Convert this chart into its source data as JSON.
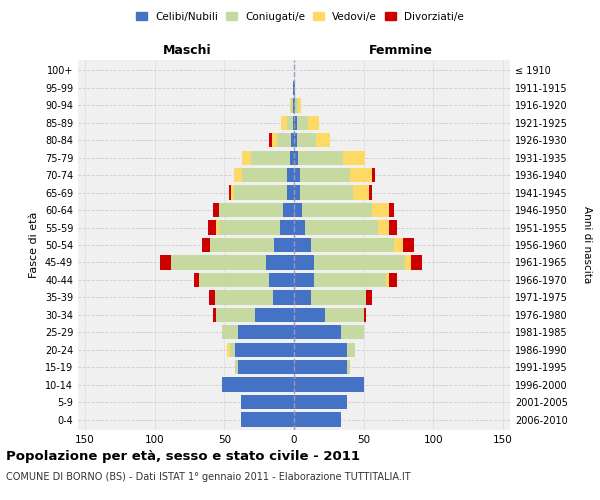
{
  "age_groups": [
    "0-4",
    "5-9",
    "10-14",
    "15-19",
    "20-24",
    "25-29",
    "30-34",
    "35-39",
    "40-44",
    "45-49",
    "50-54",
    "55-59",
    "60-64",
    "65-69",
    "70-74",
    "75-79",
    "80-84",
    "85-89",
    "90-94",
    "95-99",
    "100+"
  ],
  "birth_years": [
    "2006-2010",
    "2001-2005",
    "1996-2000",
    "1991-1995",
    "1986-1990",
    "1981-1985",
    "1976-1980",
    "1971-1975",
    "1966-1970",
    "1961-1965",
    "1956-1960",
    "1951-1955",
    "1946-1950",
    "1941-1945",
    "1936-1940",
    "1931-1935",
    "1926-1930",
    "1921-1925",
    "1916-1920",
    "1911-1915",
    "≤ 1910"
  ],
  "males": {
    "celibi": [
      38,
      38,
      52,
      40,
      42,
      40,
      28,
      15,
      18,
      20,
      14,
      10,
      8,
      5,
      5,
      3,
      2,
      1,
      1,
      1,
      0
    ],
    "coniugati": [
      0,
      0,
      0,
      2,
      4,
      12,
      28,
      42,
      50,
      68,
      46,
      44,
      46,
      38,
      32,
      28,
      10,
      4,
      1,
      0,
      0
    ],
    "vedovi": [
      0,
      0,
      0,
      0,
      2,
      0,
      0,
      0,
      0,
      0,
      0,
      2,
      0,
      2,
      6,
      6,
      4,
      4,
      1,
      0,
      0
    ],
    "divorziati": [
      0,
      0,
      0,
      0,
      0,
      0,
      2,
      4,
      4,
      8,
      6,
      6,
      4,
      2,
      0,
      0,
      2,
      0,
      0,
      0,
      0
    ]
  },
  "females": {
    "nubili": [
      34,
      38,
      50,
      38,
      38,
      34,
      22,
      12,
      14,
      14,
      12,
      8,
      6,
      4,
      4,
      3,
      2,
      2,
      1,
      1,
      0
    ],
    "coniugate": [
      0,
      0,
      0,
      2,
      6,
      16,
      28,
      40,
      52,
      66,
      60,
      52,
      50,
      38,
      36,
      32,
      14,
      8,
      2,
      0,
      0
    ],
    "vedove": [
      0,
      0,
      0,
      0,
      0,
      0,
      0,
      0,
      2,
      4,
      6,
      8,
      12,
      12,
      16,
      16,
      10,
      8,
      2,
      0,
      0
    ],
    "divorziate": [
      0,
      0,
      0,
      0,
      0,
      0,
      2,
      4,
      6,
      8,
      8,
      6,
      4,
      2,
      2,
      0,
      0,
      0,
      0,
      0,
      0
    ]
  },
  "colors": {
    "celibi": "#4472C4",
    "coniugati": "#C5D9A0",
    "vedovi": "#FFD966",
    "divorziati": "#CC0000"
  },
  "xlim": 155,
  "title": "Popolazione per età, sesso e stato civile - 2011",
  "subtitle": "COMUNE DI BORNO (BS) - Dati ISTAT 1° gennaio 2011 - Elaborazione TUTTITALIA.IT",
  "ylabel_left": "Fasce di età",
  "ylabel_right": "Anni di nascita",
  "xlabel_left": "Maschi",
  "xlabel_right": "Femmine",
  "bg_color": "#FFFFFF",
  "plot_bg": "#F0F0F0",
  "grid_color": "#CCCCCC"
}
